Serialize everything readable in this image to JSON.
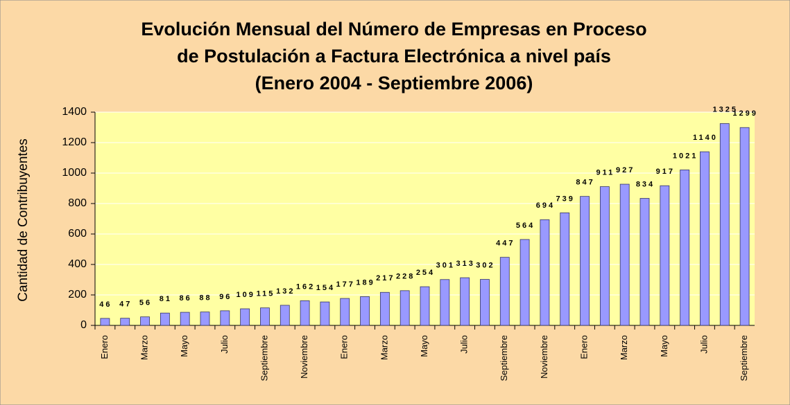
{
  "chart_data": {
    "type": "bar",
    "title": [
      "Evolución Mensual del Número de Empresas en Proceso",
      "de Postulación a Factura Electrónica a nivel país",
      "(Enero 2004 - Septiembre 2006)"
    ],
    "y_label": "Cantidad de Contribuyentes",
    "categories": [
      "Enero",
      null,
      "Marzo",
      null,
      "Mayo",
      null,
      "Julio",
      null,
      "Septiembre",
      null,
      "Noviembre",
      null,
      "Enero",
      null,
      "Marzo",
      null,
      "Mayo",
      null,
      "Julio",
      null,
      "Septiembre",
      null,
      "Noviembre",
      null,
      "Enero",
      null,
      "Marzo",
      null,
      "Mayo",
      null,
      "Julio",
      null,
      "Septiembre"
    ],
    "values": [
      46,
      47,
      56,
      81,
      86,
      88,
      96,
      109,
      115,
      132,
      162,
      154,
      177,
      189,
      217,
      228,
      254,
      301,
      313,
      302,
      447,
      564,
      694,
      739,
      847,
      911,
      927,
      834,
      917,
      1021,
      1140,
      1325,
      1299
    ],
    "color": "#9999ff",
    "ylim": [
      0,
      1400
    ],
    "yticks": [
      0,
      200,
      400,
      600,
      800,
      1000,
      1200,
      1400
    ],
    "grid": true
  }
}
